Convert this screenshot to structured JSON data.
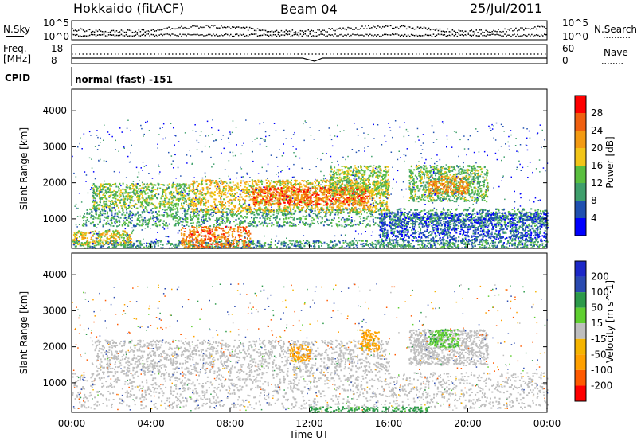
{
  "header": {
    "station": "Hokkaido (fitACF)",
    "beam": "Beam 04",
    "date": "25/Jul/2011"
  },
  "noise_panel": {
    "left_label": "N.Sky",
    "right_label": "N.Search",
    "left_ticks": [
      "10^5",
      "10^0"
    ],
    "right_ticks": [
      "10^5",
      "10^0"
    ]
  },
  "freq_panel": {
    "left_label_1": "Freq.",
    "left_label_2": "[MHz]",
    "right_label": "Nave",
    "left_ticks": [
      "18",
      "8"
    ],
    "right_ticks": [
      "60",
      "0"
    ]
  },
  "cpid": {
    "label": "CPID",
    "value": "normal (fast) -151"
  },
  "colors": {
    "power_scale": [
      "#0000ff",
      "#2050b0",
      "#3f9f6c",
      "#5abf3f",
      "#f2c518",
      "#f39a12",
      "#f06010",
      "#ff0000"
    ],
    "velocity_scale": [
      "#ff0000",
      "#ff5a00",
      "#ffa000",
      "#f5b400",
      "#bebebe",
      "#5fcf30",
      "#2c9a4a",
      "#2a4ab0",
      "#1c28c8"
    ],
    "ground_scatter": "#bebebe"
  },
  "chart_data": [
    {
      "type": "heatmap",
      "panel": "power",
      "ylabel": "Slant Range [km]",
      "ylim": [
        180,
        4600
      ],
      "yticks": [
        "1000",
        "2000",
        "3000",
        "4000"
      ],
      "xlim": [
        "00:00",
        "24:00"
      ],
      "colorbar": {
        "label": "Power [dB]",
        "ticks": [
          "4",
          "8",
          "12",
          "16",
          "20",
          "24",
          "28"
        ],
        "range": [
          0,
          32
        ]
      },
      "bands": [
        {
          "start_h": 0.0,
          "end_h": 24.0,
          "range_low": 200,
          "range_high": 420,
          "level": 10
        },
        {
          "start_h": 0.0,
          "end_h": 3.0,
          "range_low": 300,
          "range_high": 700,
          "level": 18
        },
        {
          "start_h": 0.5,
          "end_h": 24.0,
          "range_low": 800,
          "range_high": 1300,
          "level": 11
        },
        {
          "start_h": 1.0,
          "end_h": 6.0,
          "range_low": 1300,
          "range_high": 2000,
          "level": 14
        },
        {
          "start_h": 5.5,
          "end_h": 9.0,
          "range_low": 200,
          "range_high": 800,
          "level": 24
        },
        {
          "start_h": 6.0,
          "end_h": 16.0,
          "range_low": 1200,
          "range_high": 2100,
          "level": 19
        },
        {
          "start_h": 9.0,
          "end_h": 15.0,
          "range_low": 1400,
          "range_high": 1900,
          "level": 26
        },
        {
          "start_h": 13.0,
          "end_h": 16.0,
          "range_low": 1700,
          "range_high": 2500,
          "level": 15
        },
        {
          "start_h": 17.0,
          "end_h": 21.0,
          "range_low": 1500,
          "range_high": 2500,
          "level": 13
        },
        {
          "start_h": 18.0,
          "end_h": 20.0,
          "range_low": 1700,
          "range_high": 2200,
          "level": 23
        },
        {
          "start_h": 15.5,
          "end_h": 24.0,
          "range_low": 400,
          "range_high": 1200,
          "level": 6
        }
      ]
    },
    {
      "type": "heatmap",
      "panel": "velocity",
      "ylabel": "Slant Range [km]",
      "xlabel": "Time UT",
      "ylim": [
        180,
        4600
      ],
      "yticks": [
        "1000",
        "2000",
        "3000",
        "4000"
      ],
      "xticks": [
        "00:00",
        "04:00",
        "08:00",
        "12:00",
        "16:00",
        "20:00",
        "00:00"
      ],
      "colorbar": {
        "label": "Velocity [m s^-1]",
        "ticks": [
          "200",
          "100",
          "50",
          "15",
          "-15",
          "-50",
          "-100",
          "-200"
        ]
      },
      "bands": [
        {
          "start_h": 0.0,
          "end_h": 24.0,
          "range_low": 300,
          "range_high": 1300,
          "velocity": 0
        },
        {
          "start_h": 1.0,
          "end_h": 16.0,
          "range_low": 1300,
          "range_high": 2200,
          "velocity": 0
        },
        {
          "start_h": 11.0,
          "end_h": 12.0,
          "range_low": 1600,
          "range_high": 2100,
          "velocity": -60
        },
        {
          "start_h": 14.5,
          "end_h": 15.5,
          "range_low": 1900,
          "range_high": 2500,
          "velocity": -60
        },
        {
          "start_h": 17.0,
          "end_h": 21.0,
          "range_low": 1500,
          "range_high": 2500,
          "velocity": 0
        },
        {
          "start_h": 18.0,
          "end_h": 19.5,
          "range_low": 2000,
          "range_high": 2500,
          "velocity": 40
        },
        {
          "start_h": 12.0,
          "end_h": 18.0,
          "range_low": 200,
          "range_high": 350,
          "velocity": 60
        }
      ]
    }
  ]
}
